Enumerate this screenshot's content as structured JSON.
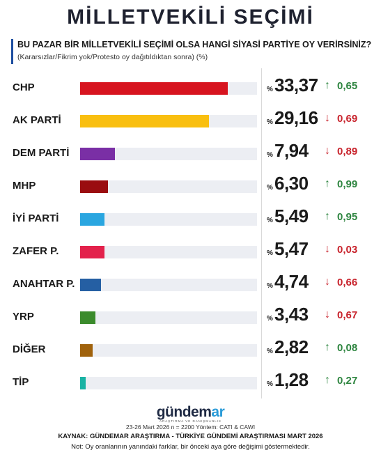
{
  "chart_data": {
    "type": "bar",
    "title": "MİLLETVEKİLİ SEÇİMİ",
    "question": "BU PAZAR BİR MİLLETVEKİLİ SEÇİMİ OLSA HANGİ SİYASİ PARTİYE OY VERİRSİNİZ?",
    "subtitle": "(Kararsızlar/Fikrim yok/Protesto oy dağıtıldıktan sonra) (%)",
    "percent_sign": "%",
    "categories": [
      "CHP",
      "AK PARTİ",
      "DEM PARTİ",
      "MHP",
      "İYİ PARTİ",
      "ZAFER P.",
      "ANAHTAR P.",
      "YRP",
      "DİĞER",
      "TİP"
    ],
    "values": [
      33.37,
      29.16,
      7.94,
      6.3,
      5.49,
      5.47,
      4.74,
      3.43,
      2.82,
      1.28
    ],
    "value_labels": [
      "33,37",
      "29,16",
      "7,94",
      "6,30",
      "5,49",
      "5,47",
      "4,74",
      "3,43",
      "2,82",
      "1,28"
    ],
    "change_labels": [
      "0,65",
      "0,69",
      "0,89",
      "0,99",
      "0,95",
      "0,03",
      "0,66",
      "0,67",
      "0,08",
      "0,27"
    ],
    "change_direction": [
      "up",
      "down",
      "down",
      "up",
      "up",
      "down",
      "down",
      "down",
      "up",
      "up"
    ],
    "colors": [
      "#d7141f",
      "#f9bf10",
      "#7a2fa5",
      "#9a0d10",
      "#2aa6e0",
      "#e3214b",
      "#255fa3",
      "#3b8b2c",
      "#a0620c",
      "#19b3a4"
    ],
    "xlim": [
      0,
      40
    ],
    "grid": false,
    "legend": "none"
  },
  "footer": {
    "logo_main": "gündem",
    "logo_accent": "ar",
    "logo_sub": "ARAŞTIRMA VE DANIŞMANLIK",
    "meta": "23-26 Mart 2026 n = 2200 Yöntem: CATI & CAWI",
    "source": "KAYNAK: GÜNDEMAR ARAŞTIRMA - TÜRKİYE GÜNDEMİ ARAŞTIRMASI MART 2026",
    "note": "Not: Oy oranlarının yanındaki farklar, bir önceki aya göre değişimi göstermektedir."
  },
  "icons": {
    "up": "arrow-up-icon",
    "down": "arrow-down-icon"
  }
}
